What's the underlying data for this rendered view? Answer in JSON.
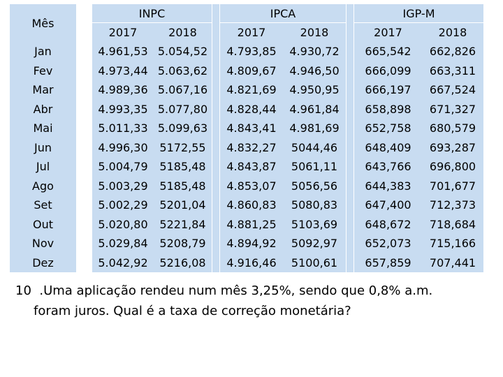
{
  "table": {
    "month_header": "Mês",
    "groups": [
      {
        "name": "INPC",
        "years": [
          "2017",
          "2018"
        ]
      },
      {
        "name": "IPCA",
        "years": [
          "2017",
          "2018"
        ]
      },
      {
        "name": "IGP-M",
        "years": [
          "2017",
          "2018"
        ]
      }
    ],
    "rows": [
      {
        "month": "Jan",
        "values": [
          "4.961,53",
          "5.054,52",
          "4.793,85",
          "4.930,72",
          "665,542",
          "662,826"
        ]
      },
      {
        "month": "Fev",
        "values": [
          "4.973,44",
          "5.063,62",
          "4.809,67",
          "4.946,50",
          "666,099",
          "663,311"
        ]
      },
      {
        "month": "Mar",
        "values": [
          "4.989,36",
          "5.067,16",
          "4.821,69",
          "4.950,95",
          "666,197",
          "667,524"
        ]
      },
      {
        "month": "Abr",
        "values": [
          "4.993,35",
          "5.077,80",
          "4.828,44",
          "4.961,84",
          "658,898",
          "671,327"
        ]
      },
      {
        "month": "Mai",
        "values": [
          "5.011,33",
          "5.099,63",
          "4.843,41",
          "4.981,69",
          "652,758",
          "680,579"
        ]
      },
      {
        "month": "Jun",
        "values": [
          "4.996,30",
          "5172,55",
          "4.832,27",
          "5044,46",
          "648,409",
          "693,287"
        ]
      },
      {
        "month": "Jul",
        "values": [
          "5.004,79",
          "5185,48",
          "4.843,87",
          "5061,11",
          "643,766",
          "696,800"
        ]
      },
      {
        "month": "Ago",
        "values": [
          "5.003,29",
          "5185,48",
          "4.853,07",
          "5056,56",
          "644,383",
          "701,677"
        ]
      },
      {
        "month": "Set",
        "values": [
          "5.002,29",
          "5201,04",
          "4.860,83",
          "5080,83",
          "647,400",
          "712,373"
        ]
      },
      {
        "month": "Out",
        "values": [
          "5.020,80",
          "5221,84",
          "4.881,25",
          "5103,69",
          "648,672",
          "718,684"
        ]
      },
      {
        "month": "Nov",
        "values": [
          "5.029,84",
          "5208,79",
          "4.894,92",
          "5092,97",
          "652,073",
          "715,166"
        ]
      },
      {
        "month": "Dez",
        "values": [
          "5.042,92",
          "5216,08",
          "4.916,46",
          "5100,61",
          "657,859",
          "707,441"
        ]
      }
    ]
  },
  "question": {
    "number": "10",
    "line1": ".Uma aplicação rendeu num mês 3,25%, sendo que 0,8% a.m.",
    "line2": "foram juros. Qual é a taxa de correção monetária?"
  },
  "colors": {
    "cell_background": "#c8dcf1",
    "page_background": "#ffffff"
  }
}
